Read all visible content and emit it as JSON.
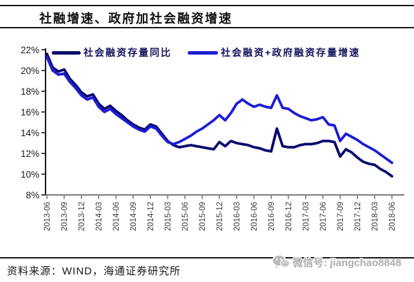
{
  "title": "社融增速、政府加社会融资增速",
  "legend": [
    {
      "label": "社会融资存量同比",
      "color": "#0a0a6e"
    },
    {
      "label": "社会融资+政府融资存量增速",
      "color": "#1c1cd6"
    }
  ],
  "footer": {
    "source": "资料来源：WIND，海通证券研究所",
    "watermark": "微信号: jiangchao8848"
  },
  "chart_data": {
    "type": "line",
    "title": "社融增速、政府加社会融资增速",
    "xlabel": "",
    "ylabel": "",
    "ylim": [
      8,
      22
    ],
    "grid": false,
    "legend_position": "top-inside",
    "x_tick_every_months": 3,
    "yticks": [
      {
        "v": 22,
        "label": "22%"
      },
      {
        "v": 20,
        "label": "20%"
      },
      {
        "v": 18,
        "label": "18%"
      },
      {
        "v": 16,
        "label": "16%"
      },
      {
        "v": 14,
        "label": "14%"
      },
      {
        "v": 12,
        "label": "12%"
      },
      {
        "v": 10,
        "label": "10%"
      },
      {
        "v": 8,
        "label": "8%"
      }
    ],
    "x": [
      "2013-06",
      "2013-07",
      "2013-08",
      "2013-09",
      "2013-10",
      "2013-11",
      "2013-12",
      "2014-01",
      "2014-02",
      "2014-03",
      "2014-04",
      "2014-05",
      "2014-06",
      "2014-07",
      "2014-08",
      "2014-09",
      "2014-10",
      "2014-11",
      "2014-12",
      "2015-01",
      "2015-02",
      "2015-03",
      "2015-04",
      "2015-05",
      "2015-06",
      "2015-07",
      "2015-08",
      "2015-09",
      "2015-10",
      "2015-11",
      "2015-12",
      "2016-01",
      "2016-02",
      "2016-03",
      "2016-04",
      "2016-05",
      "2016-06",
      "2016-07",
      "2016-08",
      "2016-09",
      "2016-10",
      "2016-11",
      "2016-12",
      "2017-01",
      "2017-02",
      "2017-03",
      "2017-04",
      "2017-05",
      "2017-06",
      "2017-07",
      "2017-08",
      "2017-09",
      "2017-10",
      "2017-11",
      "2017-12",
      "2018-01",
      "2018-02",
      "2018-03",
      "2018-04",
      "2018-05",
      "2018-06"
    ],
    "series": [
      {
        "name": "社会融资存量同比",
        "color": "#0a0a6e",
        "values": [
          21.6,
          20.3,
          19.9,
          20.1,
          19.2,
          18.6,
          17.9,
          17.5,
          17.7,
          16.8,
          16.3,
          16.6,
          16.1,
          15.7,
          15.2,
          14.8,
          14.5,
          14.3,
          14.8,
          14.6,
          13.9,
          13.2,
          12.8,
          12.6,
          12.7,
          12.8,
          12.7,
          12.6,
          12.5,
          12.4,
          13.1,
          12.7,
          13.2,
          13.0,
          12.9,
          12.8,
          12.6,
          12.5,
          12.3,
          12.2,
          14.4,
          12.7,
          12.6,
          12.6,
          12.8,
          12.9,
          12.9,
          13.0,
          13.2,
          13.2,
          13.1,
          11.7,
          12.4,
          12.1,
          11.6,
          11.2,
          11.0,
          10.9,
          10.5,
          10.2,
          9.8
        ]
      },
      {
        "name": "社会融资+政府融资存量增速",
        "color": "#1c1cd6",
        "values": [
          21.3,
          20.0,
          19.6,
          19.7,
          18.9,
          18.3,
          17.6,
          17.2,
          17.4,
          16.5,
          16.0,
          16.3,
          15.8,
          15.4,
          15.0,
          14.6,
          14.3,
          14.1,
          14.6,
          14.4,
          13.7,
          13.1,
          12.9,
          13.1,
          13.4,
          13.7,
          14.1,
          14.4,
          14.8,
          15.2,
          15.7,
          15.2,
          15.9,
          16.8,
          17.2,
          16.8,
          16.5,
          16.7,
          16.5,
          16.4,
          17.6,
          16.4,
          16.3,
          15.9,
          15.6,
          15.4,
          15.2,
          15.3,
          15.5,
          14.8,
          14.7,
          13.2,
          13.9,
          13.6,
          13.3,
          12.9,
          12.6,
          12.3,
          11.9,
          11.5,
          11.1
        ]
      }
    ]
  }
}
